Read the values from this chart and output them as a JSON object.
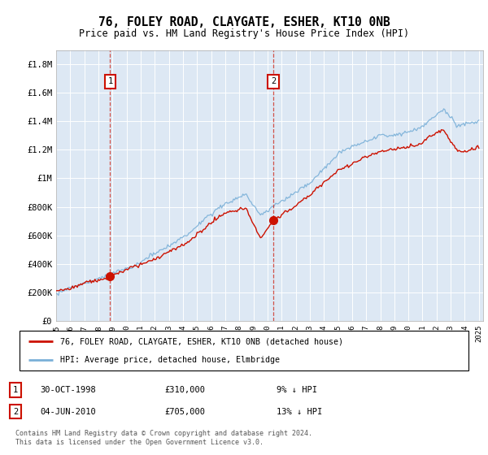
{
  "title": "76, FOLEY ROAD, CLAYGATE, ESHER, KT10 0NB",
  "subtitle": "Price paid vs. HM Land Registry's House Price Index (HPI)",
  "ylim": [
    0,
    1900000
  ],
  "yticks": [
    0,
    200000,
    400000,
    600000,
    800000,
    1000000,
    1200000,
    1400000,
    1600000,
    1800000
  ],
  "ytick_labels": [
    "£0",
    "£200K",
    "£400K",
    "£600K",
    "£800K",
    "£1M",
    "£1.2M",
    "£1.4M",
    "£1.6M",
    "£1.8M"
  ],
  "background_color": "#dde8f4",
  "hpi_color": "#7ab0d8",
  "price_color": "#cc1100",
  "marker1_year": 1998.83,
  "marker1_price": 310000,
  "marker2_year": 2010.42,
  "marker2_price": 705000,
  "marker1_date": "30-OCT-1998",
  "marker1_hpi_pct": "9% ↓ HPI",
  "marker2_date": "04-JUN-2010",
  "marker2_hpi_pct": "13% ↓ HPI",
  "legend_line1": "76, FOLEY ROAD, CLAYGATE, ESHER, KT10 0NB (detached house)",
  "legend_line2": "HPI: Average price, detached house, Elmbridge",
  "footer": "Contains HM Land Registry data © Crown copyright and database right 2024.\nThis data is licensed under the Open Government Licence v3.0."
}
